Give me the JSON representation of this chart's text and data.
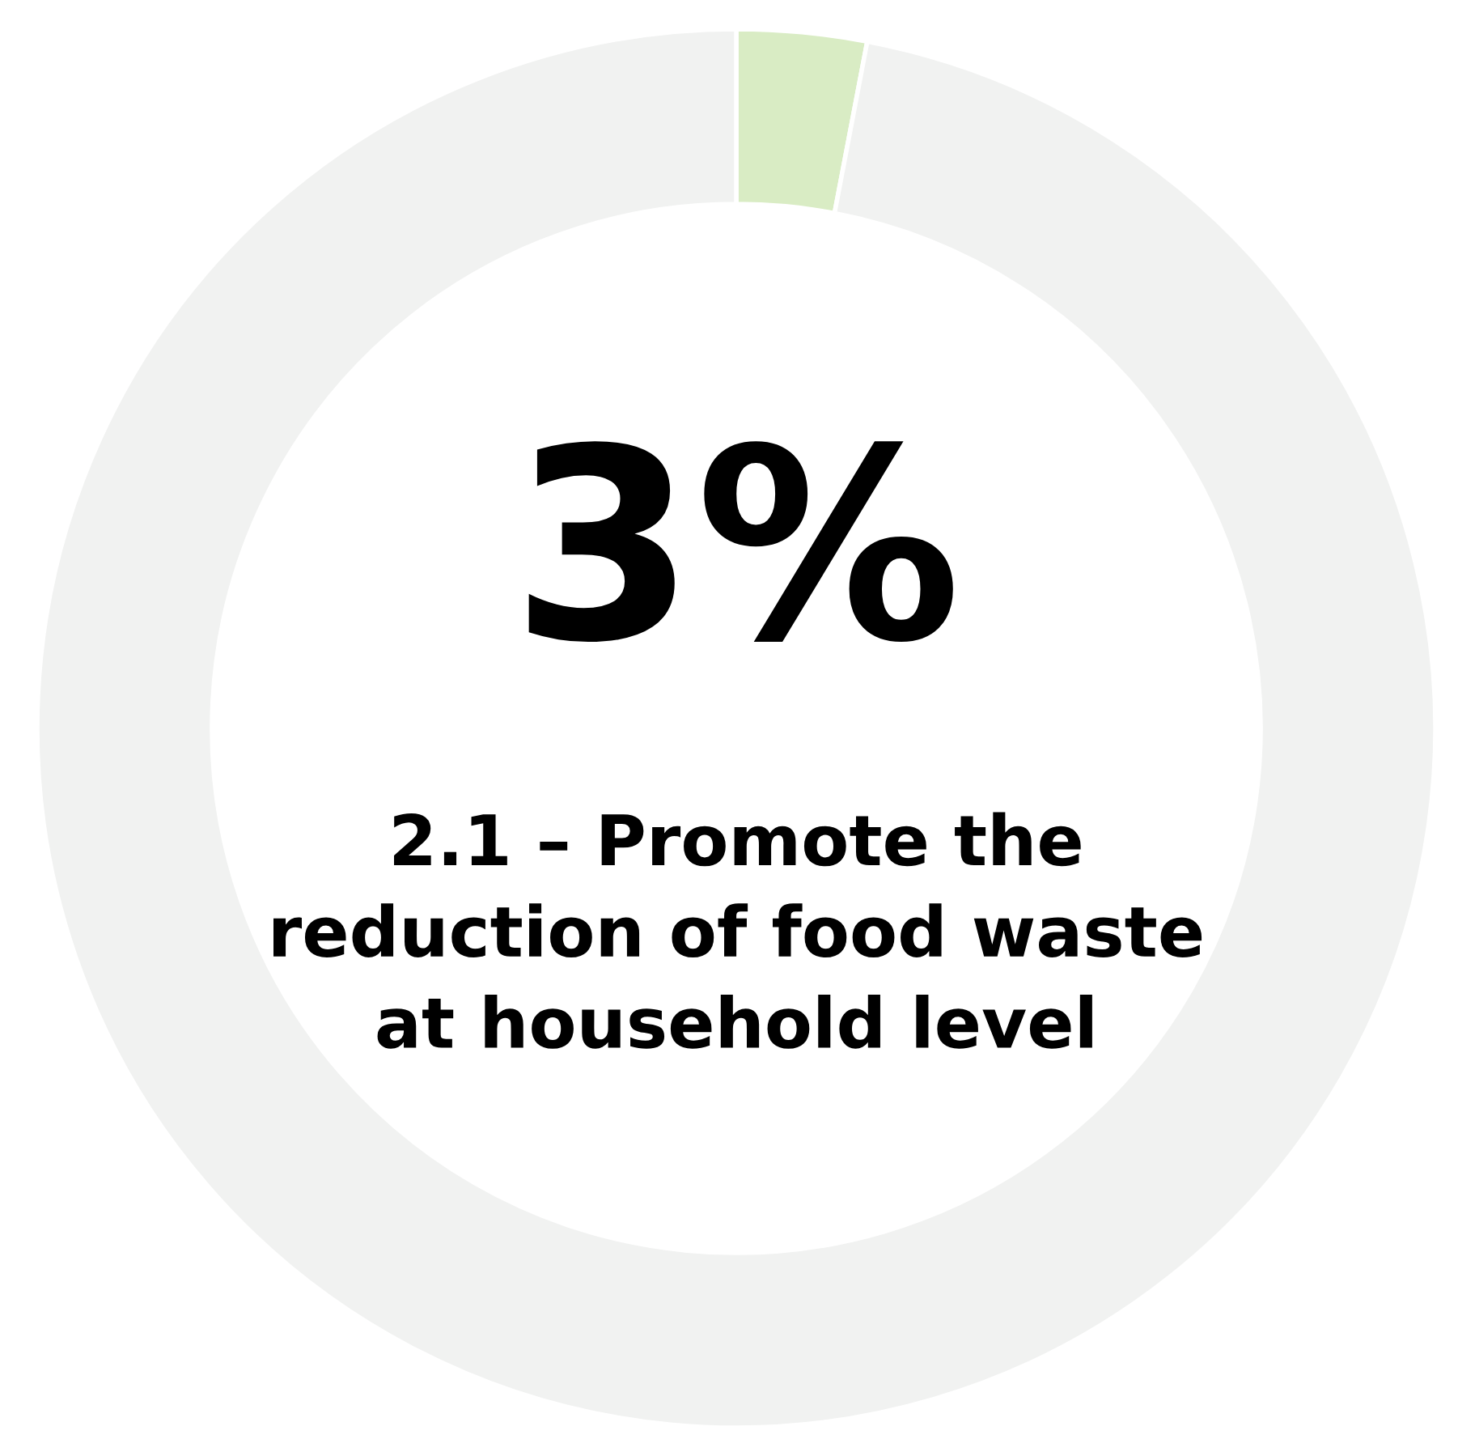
{
  "chart_data": {
    "type": "donut",
    "title": "2.1 – Promote the\nreduction of food waste\nat household level",
    "categories": [
      null,
      null
    ],
    "values": [
      3,
      97
    ],
    "colors": [
      "#d9ecc4",
      "#f1f2f1"
    ],
    "value_labels": [
      "3%",
      null
    ]
  }
}
